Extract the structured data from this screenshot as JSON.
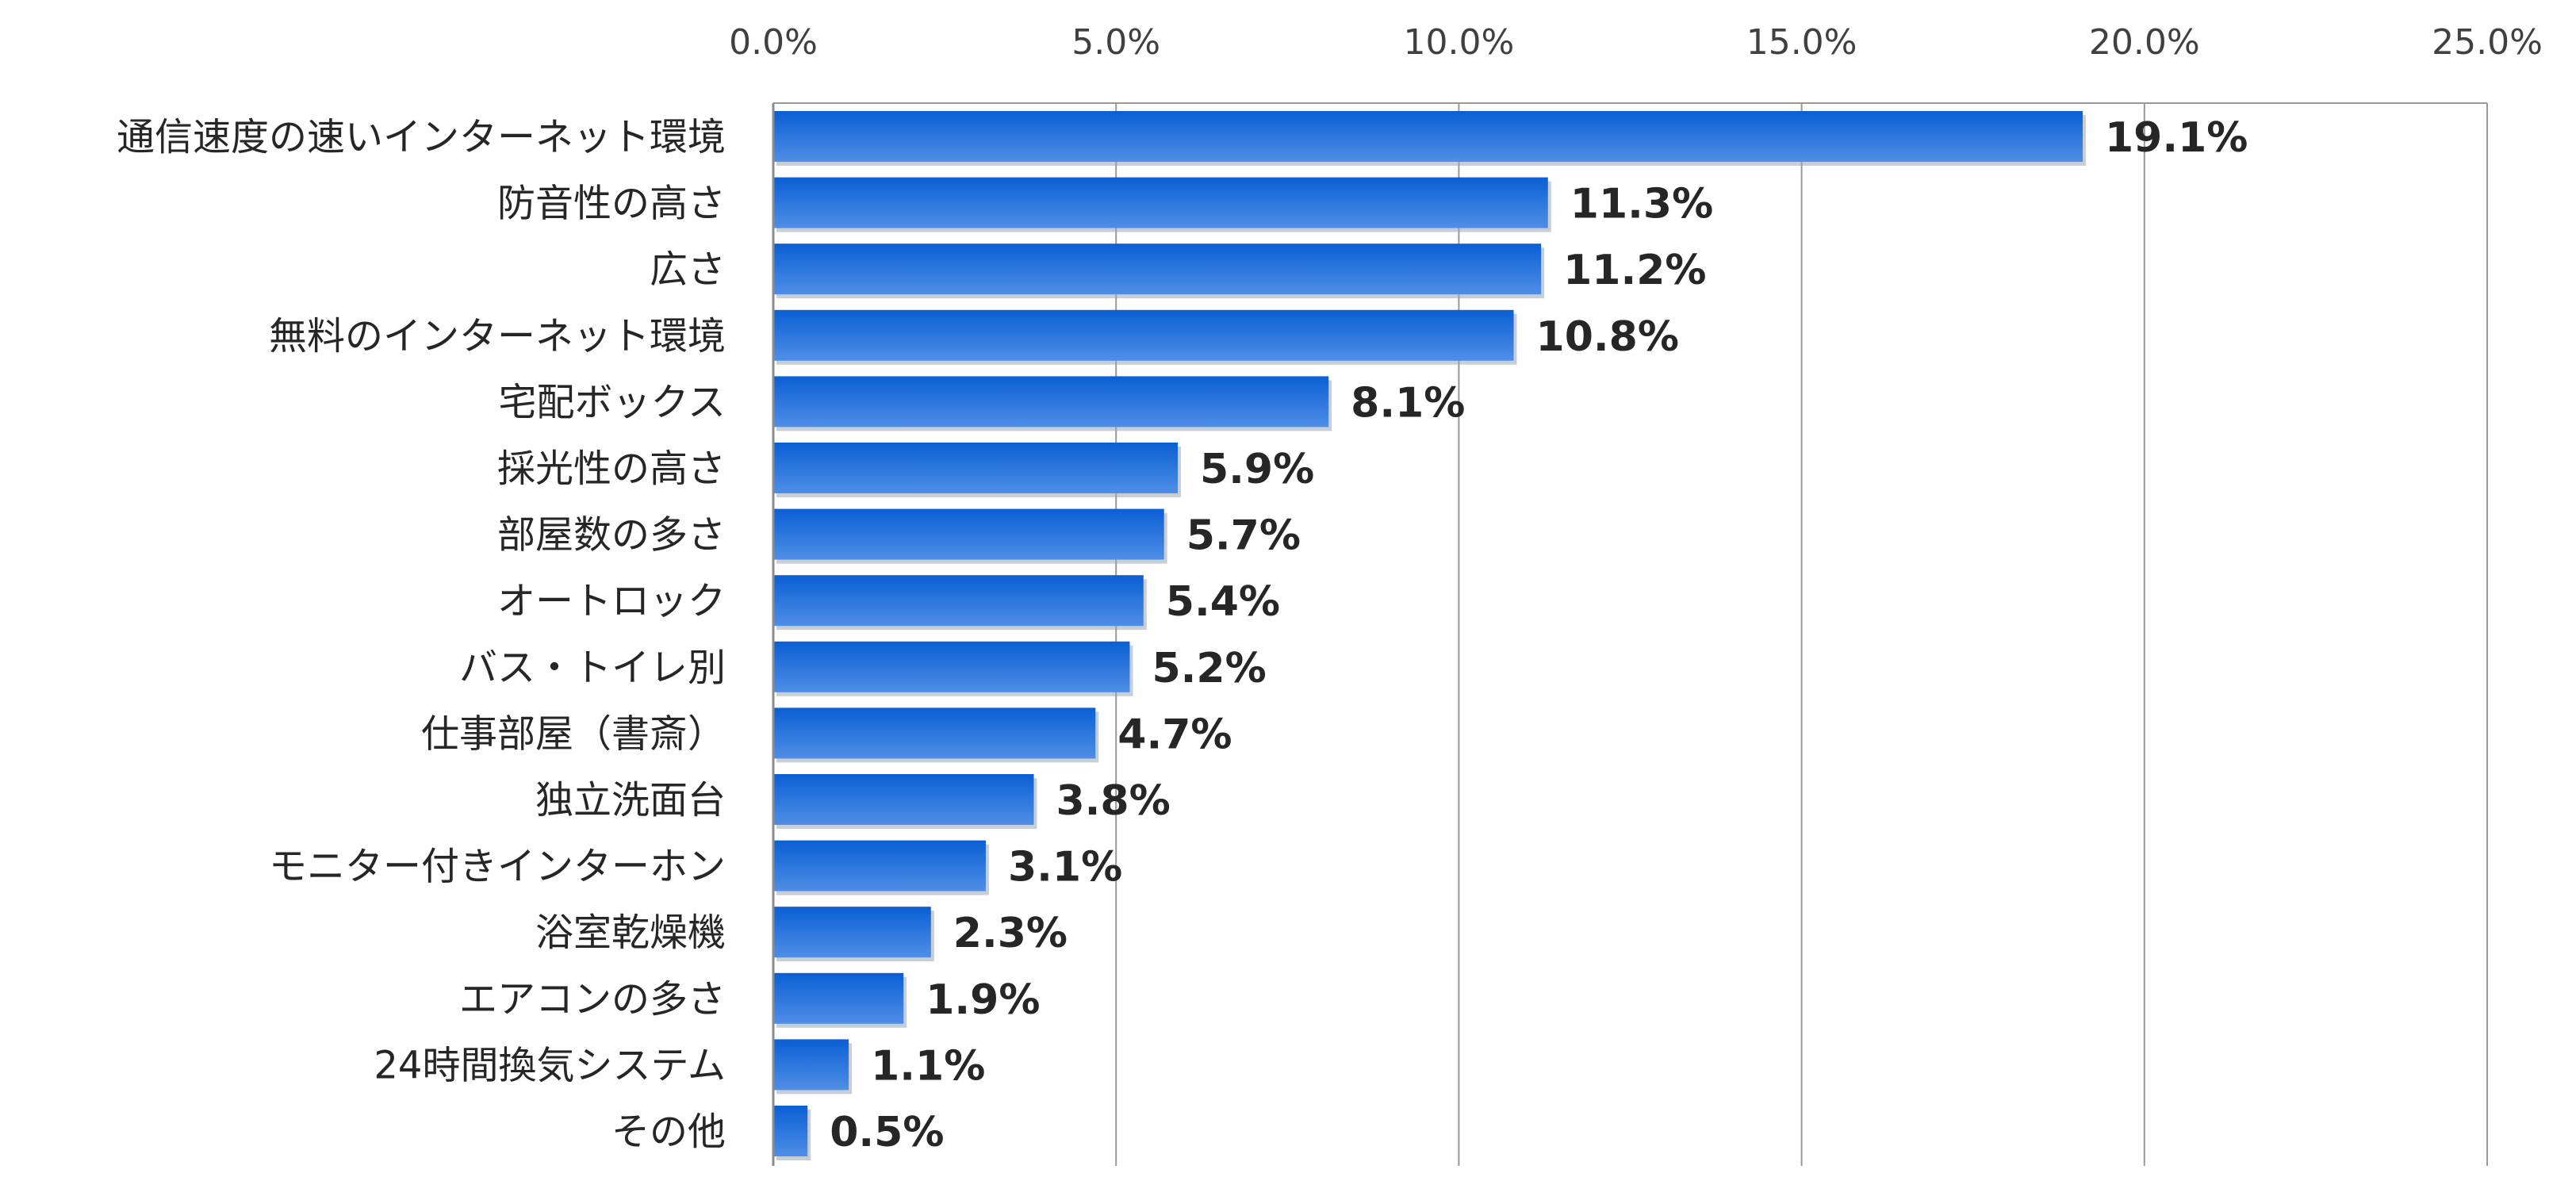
{
  "chart_data": {
    "type": "bar",
    "orientation": "horizontal",
    "categories": [
      "通信速度の速いインターネット環境",
      "防音性の高さ",
      "広さ",
      "無料のインターネット環境",
      "宅配ボックス",
      "採光性の高さ",
      "部屋数の多さ",
      "オートロック",
      "バス・トイレ別",
      "仕事部屋（書斎）",
      "独立洗面台",
      "モニター付きインターホン",
      "浴室乾燥機",
      "エアコンの多さ",
      "24時間換気システム",
      "その他"
    ],
    "values": [
      19.1,
      11.3,
      11.2,
      10.8,
      8.1,
      5.9,
      5.7,
      5.4,
      5.2,
      4.7,
      3.8,
      3.1,
      2.3,
      1.9,
      1.1,
      0.5
    ],
    "value_labels": [
      "19.1%",
      "11.3%",
      "11.2%",
      "10.8%",
      "8.1%",
      "5.9%",
      "5.7%",
      "5.4%",
      "5.2%",
      "4.7%",
      "3.8%",
      "3.1%",
      "2.3%",
      "1.9%",
      "1.1%",
      "0.5%"
    ],
    "xlim": [
      0,
      25
    ],
    "x_ticks": [
      0,
      5,
      10,
      15,
      20,
      25
    ],
    "x_tick_labels": [
      "0.0%",
      "5.0%",
      "10.0%",
      "15.0%",
      "20.0%",
      "25.0%"
    ],
    "x_axis_position": "top",
    "grid": true,
    "legend": "none",
    "colors": {
      "bar_top": "#0a5fd4",
      "bar_bottom": "#4f8ee6",
      "bar_shadow": "#9aa6b8",
      "gridline": "#999999"
    }
  }
}
